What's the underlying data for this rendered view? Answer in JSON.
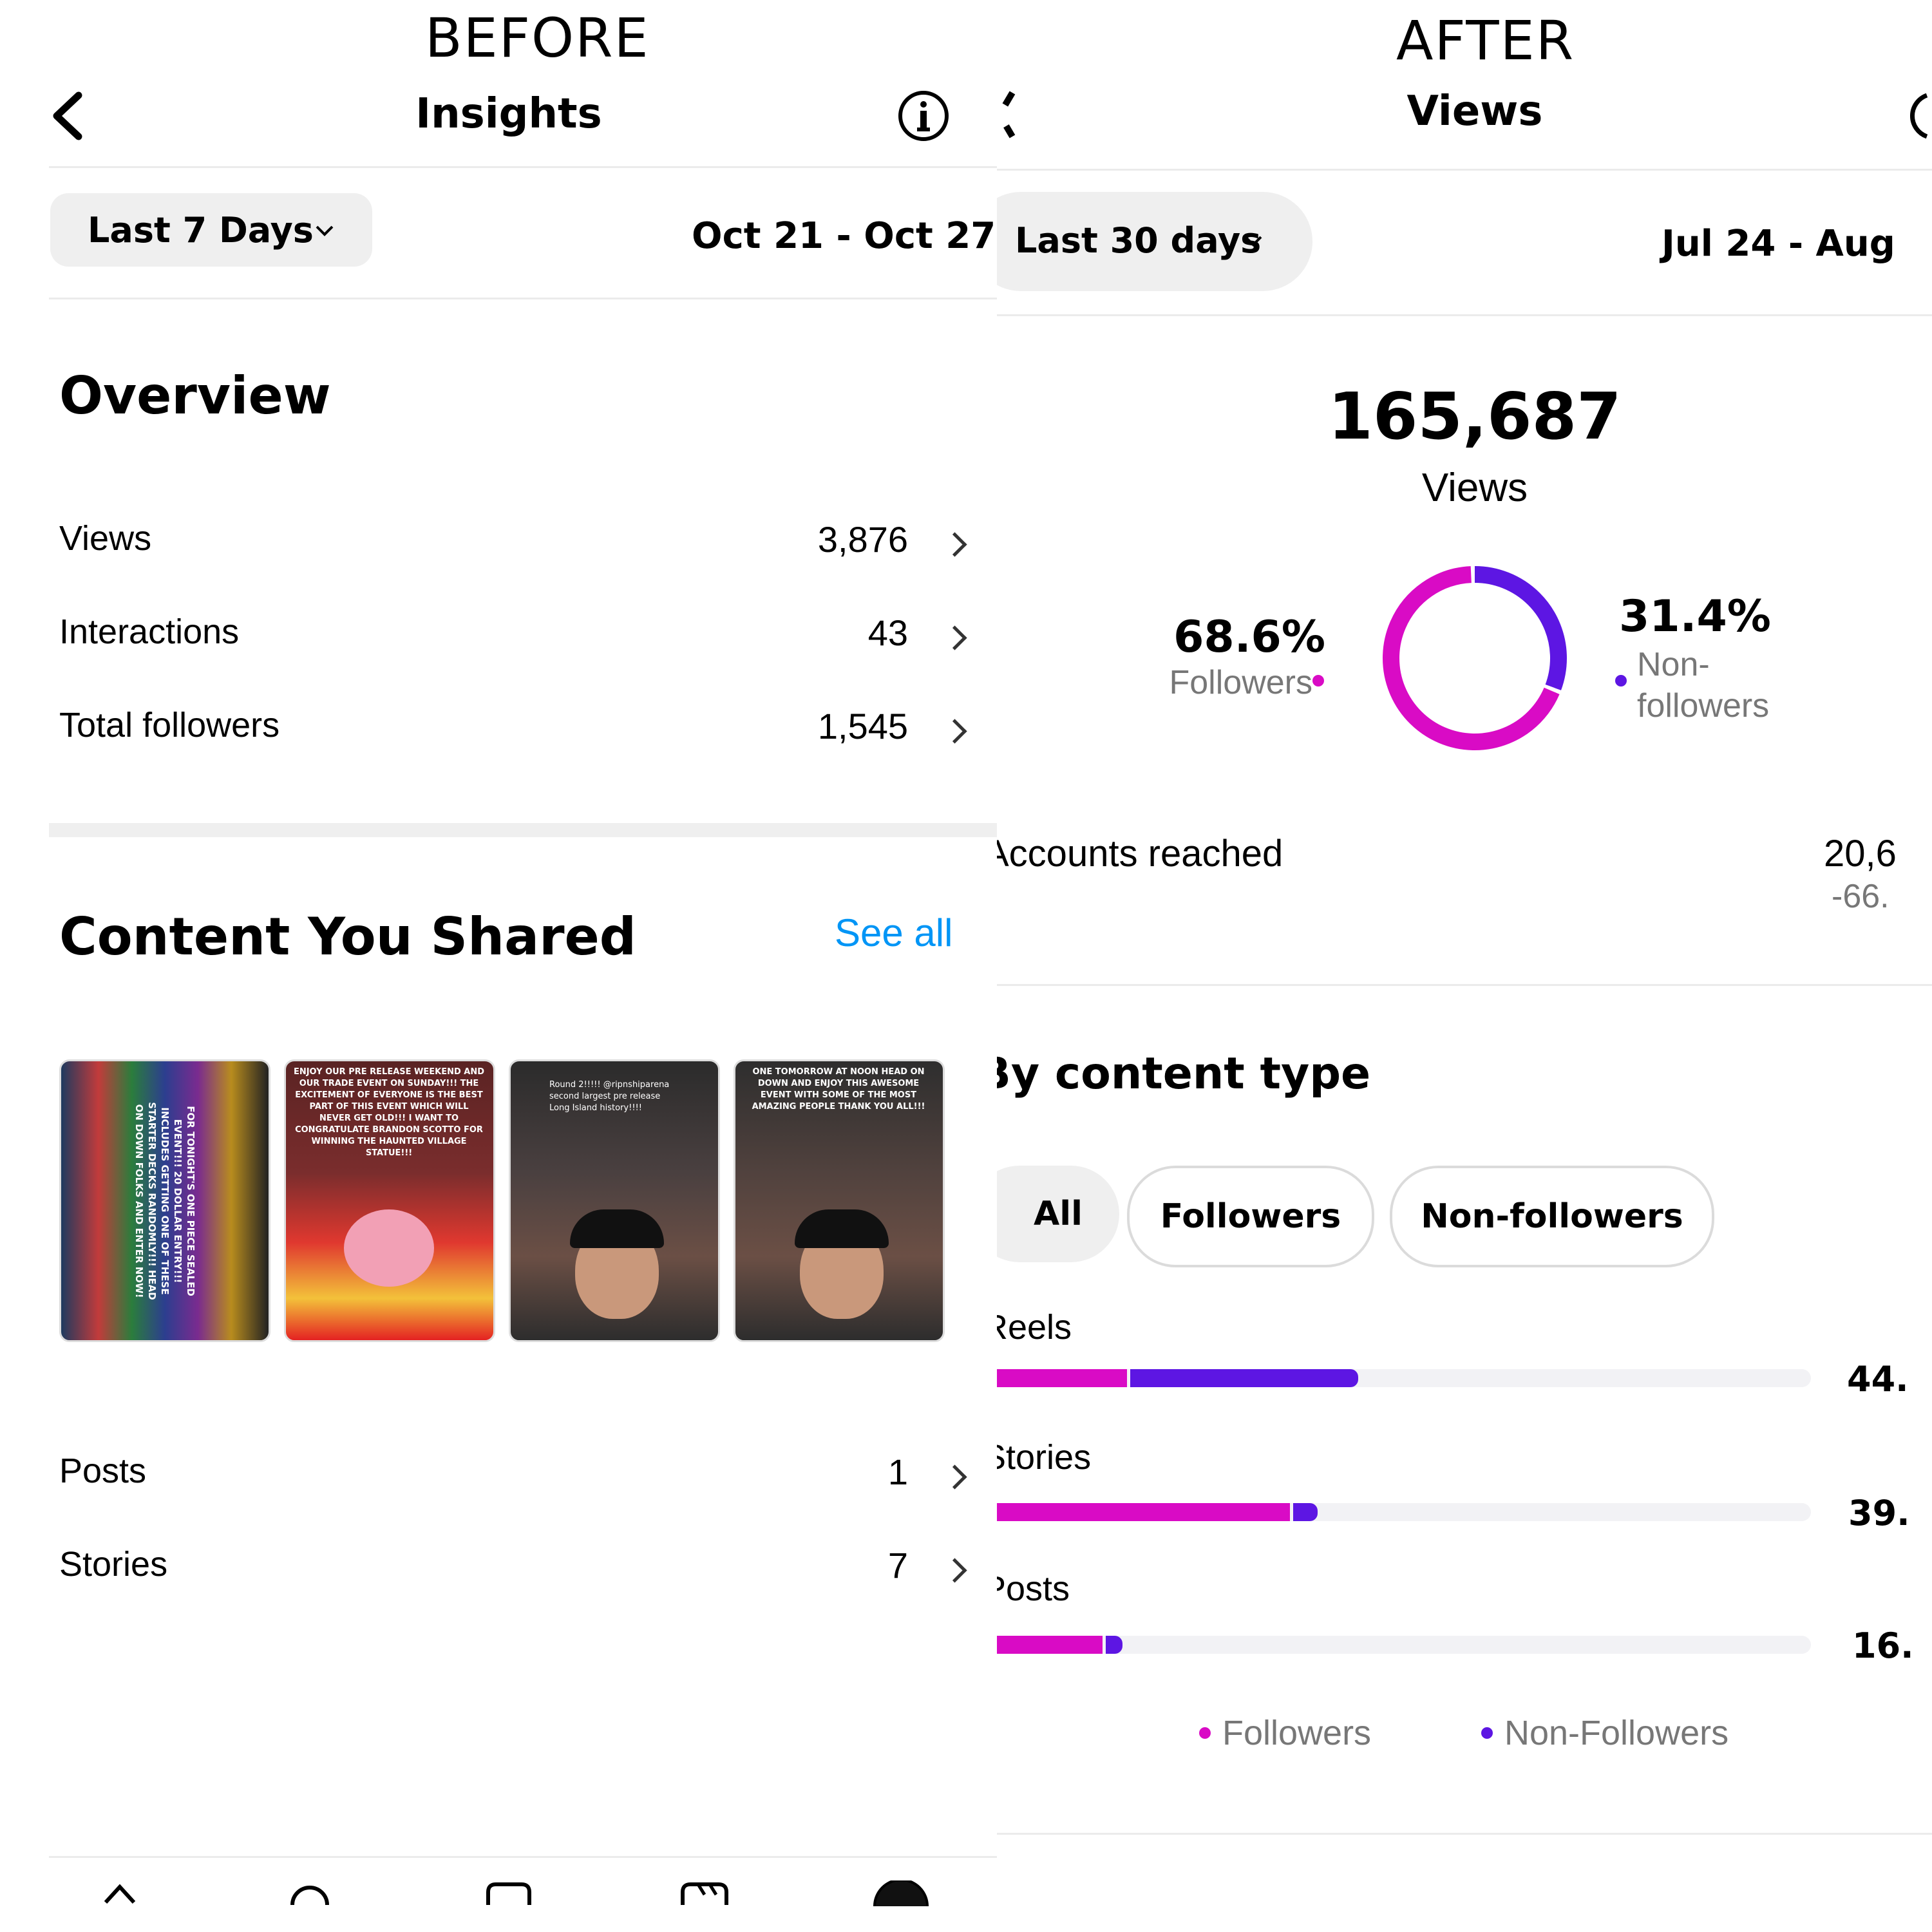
{
  "before": {
    "heading": "BEFORE",
    "nav_title": "Insights",
    "range_label": "Last 7 Days",
    "date_range": "Oct 21 - Oct 27",
    "overview_title": "Overview",
    "overview_rows": [
      {
        "label": "Views",
        "value": "3,876"
      },
      {
        "label": "Interactions",
        "value": "43"
      },
      {
        "label": "Total followers",
        "value": "1,545"
      }
    ],
    "content_title": "Content You Shared",
    "see_all": "See all",
    "thumbnails": [
      {
        "text": "FOR TONIGHT'S ONE PIECE SEALED EVENT!!! 20 DOLLAR ENTRY!!! INCLUDES GETTING ONE OF THESE STARTER DECKS RANDOMLY!!! HEAD ON DOWN FOLKS AND ENTER NOW!"
      },
      {
        "text": "ENJOY OUR PRE RELEASE WEEKEND AND OUR TRADE EVENT ON SUNDAY!!! THE EXCITEMENT OF EVERYONE IS THE BEST PART OF THIS EVENT WHICH WILL NEVER GET OLD!!! I WANT TO CONGRATULATE BRANDON SCOTTO FOR WINNING THE HAUNTED VILLAGE STATUE!!!"
      },
      {
        "text": "Round 2!!!!! @ripnshiparena second largest pre release Long Island history!!!!"
      },
      {
        "text": "ONE TOMORROW AT NOON HEAD ON DOWN AND ENJOY THIS AWESOME EVENT WITH SOME OF THE MOST AMAZING PEOPLE THANK YOU ALL!!!"
      }
    ],
    "content_rows": [
      {
        "label": "Posts",
        "value": "1"
      },
      {
        "label": "Stories",
        "value": "7"
      }
    ]
  },
  "after": {
    "heading": "AFTER",
    "nav_title": "Views",
    "range_label": "Last 30 days",
    "date_range": "Jul 24 - Aug",
    "total_views": "165,687",
    "views_label": "Views",
    "followers_pct": "68.6%",
    "followers_label": "Followers",
    "nonfollowers_pct": "31.4%",
    "nonfollowers_label": "Non-followers",
    "donut": {
      "followers_fraction": 0.686,
      "nonfollowers_fraction": 0.314
    },
    "accounts_reached_label": "Accounts reached",
    "accounts_reached_value": "20,6",
    "accounts_reached_change": "-66.",
    "by_content_title": "By content type",
    "filters": [
      {
        "label": "All",
        "selected": true
      },
      {
        "label": "Followers",
        "selected": false
      },
      {
        "label": "Non-followers",
        "selected": false
      }
    ],
    "content_types": [
      {
        "label": "Reels",
        "value": "44.",
        "followers_pct": 16,
        "nonfollowers_pct": 28
      },
      {
        "label": "Stories",
        "value": "39.",
        "followers_pct": 36,
        "nonfollowers_pct": 3
      },
      {
        "label": "Posts",
        "value": "16.",
        "followers_pct": 13,
        "nonfollowers_pct": 2
      }
    ],
    "legend": [
      "Followers",
      "Non-Followers"
    ],
    "colors": {
      "followers": "#d90bc5",
      "nonfollowers": "#5d16e3"
    }
  }
}
